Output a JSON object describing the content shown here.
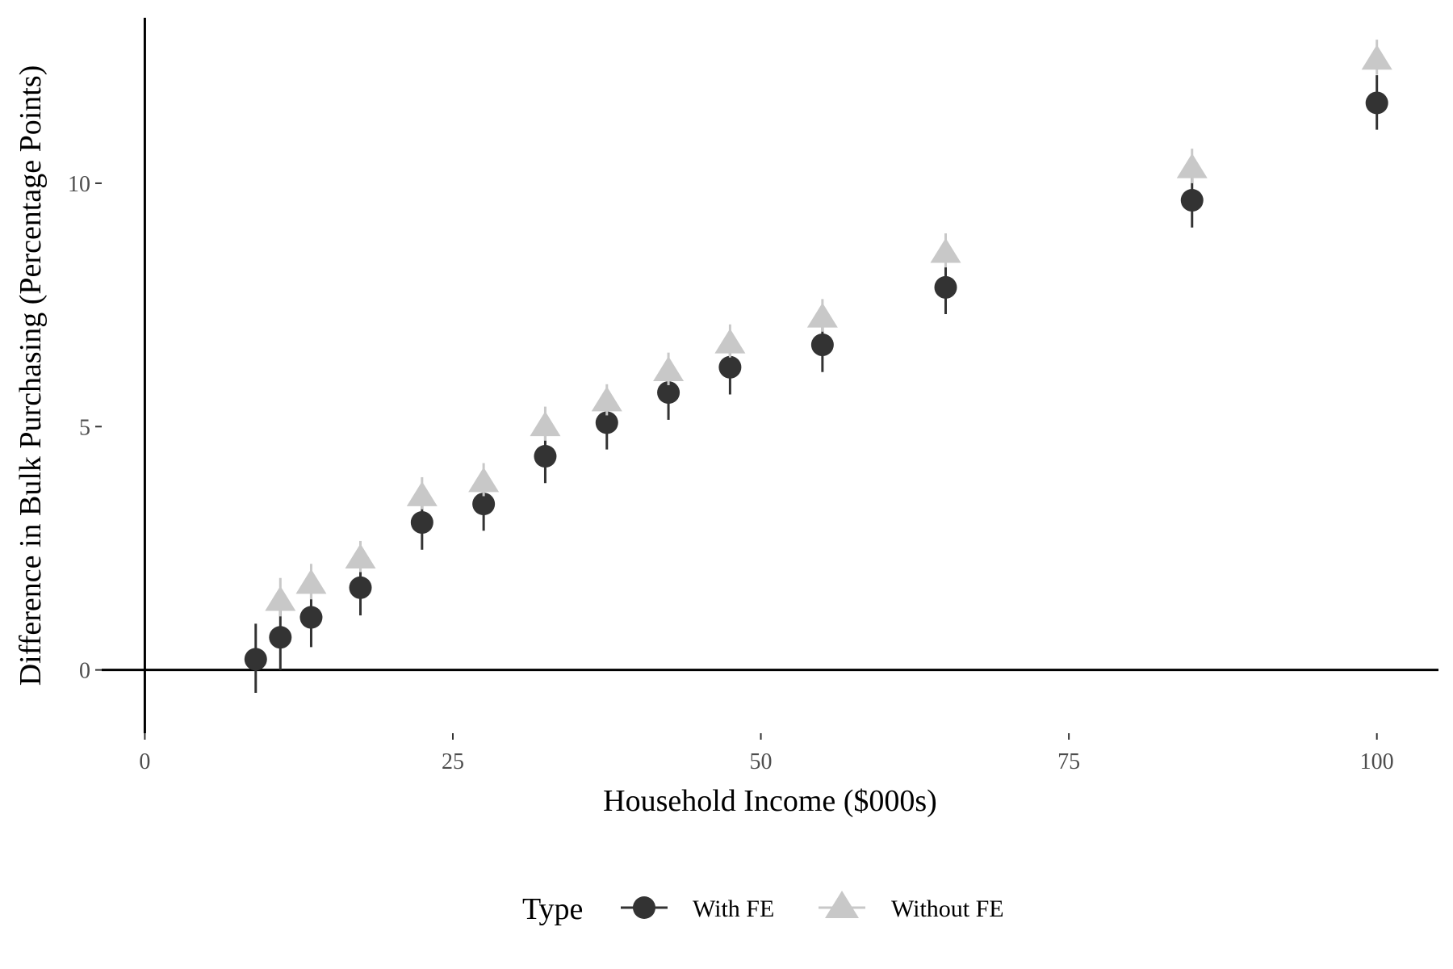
{
  "chart_data": {
    "type": "scatter",
    "title": "",
    "xlabel": "Household Income ($000s)",
    "ylabel": "Difference in Bulk Purchasing (Percentage Points)",
    "xlim": [
      -3.5,
      105
    ],
    "ylim": [
      -1.3,
      13.4
    ],
    "x_ticks": [
      0,
      25,
      50,
      75,
      100
    ],
    "y_ticks": [
      0,
      5,
      10
    ],
    "x_tick_labels": [
      "0",
      "25",
      "50",
      "75",
      "100"
    ],
    "y_tick_labels": [
      "0",
      "5",
      "10"
    ],
    "grid": false,
    "reference_lines": {
      "x": 0,
      "y": 0
    },
    "legend": {
      "title": "Type",
      "position": "bottom"
    },
    "series": [
      {
        "name": "With FE",
        "marker": "circle",
        "color": "#333333",
        "error_bars": true,
        "x": [
          9,
          11,
          13.5,
          17.5,
          22.5,
          27.5,
          32.5,
          37.5,
          42.5,
          47.5,
          55,
          65,
          85,
          100
        ],
        "y": [
          0.22,
          0.67,
          1.08,
          1.69,
          3.03,
          3.41,
          4.39,
          5.08,
          5.7,
          6.22,
          6.68,
          7.86,
          9.65,
          11.65
        ],
        "lower": [
          -0.47,
          0.0,
          0.47,
          1.12,
          2.47,
          2.86,
          3.84,
          4.53,
          5.14,
          5.66,
          6.12,
          7.31,
          9.09,
          11.1
        ],
        "upper": [
          0.95,
          1.36,
          1.68,
          2.25,
          3.58,
          3.96,
          4.92,
          5.64,
          6.25,
          6.77,
          7.24,
          8.42,
          10.21,
          12.22
        ]
      },
      {
        "name": "Without FE",
        "marker": "triangle",
        "color": "#c8c8c8",
        "error_bars": true,
        "x": [
          11,
          13.5,
          17.5,
          22.5,
          27.5,
          32.5,
          37.5,
          42.5,
          47.5,
          55,
          65,
          85,
          100
        ],
        "y": [
          1.41,
          1.76,
          2.28,
          3.56,
          3.85,
          5.0,
          5.51,
          6.13,
          6.7,
          7.23,
          8.56,
          10.3,
          12.53
        ],
        "lower": [
          1.1,
          1.45,
          2.01,
          3.3,
          3.57,
          4.71,
          5.23,
          5.85,
          6.42,
          6.95,
          8.27,
          10.0,
          12.23
        ],
        "upper": [
          1.89,
          2.18,
          2.65,
          3.96,
          4.25,
          5.41,
          5.87,
          6.52,
          7.1,
          7.62,
          8.97,
          10.71,
          12.95
        ]
      }
    ]
  }
}
